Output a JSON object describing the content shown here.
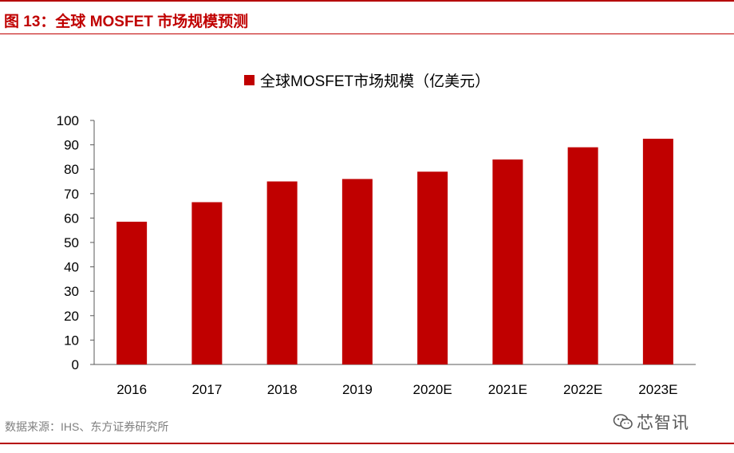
{
  "figure": {
    "title": "图 13：全球 MOSFET 市场规模预测",
    "source": "数据来源：IHS、东方证券研究所",
    "watermark_text": "芯智讯",
    "watermark_icon": "wechat-icon"
  },
  "colors": {
    "accent": "#c00000",
    "bar": "#c00000",
    "axis": "#595959",
    "source_text": "#7f7f7f"
  },
  "chart_data": {
    "type": "bar",
    "title": "",
    "legend": "全球MOSFET市场规模（亿美元）",
    "legend_position": "top-center",
    "categories": [
      "2016",
      "2017",
      "2018",
      "2019",
      "2020E",
      "2021E",
      "2022E",
      "2023E"
    ],
    "series": [
      {
        "name": "全球MOSFET市场规模（亿美元）",
        "values": [
          58.5,
          66.5,
          75,
          76,
          79,
          84,
          89,
          92.5
        ]
      }
    ],
    "xlabel": "",
    "ylabel": "",
    "ylim": [
      0,
      100
    ],
    "yticks": [
      "0",
      "10",
      "20",
      "30",
      "40",
      "50",
      "60",
      "70",
      "80",
      "90",
      "100"
    ],
    "grid": false
  }
}
